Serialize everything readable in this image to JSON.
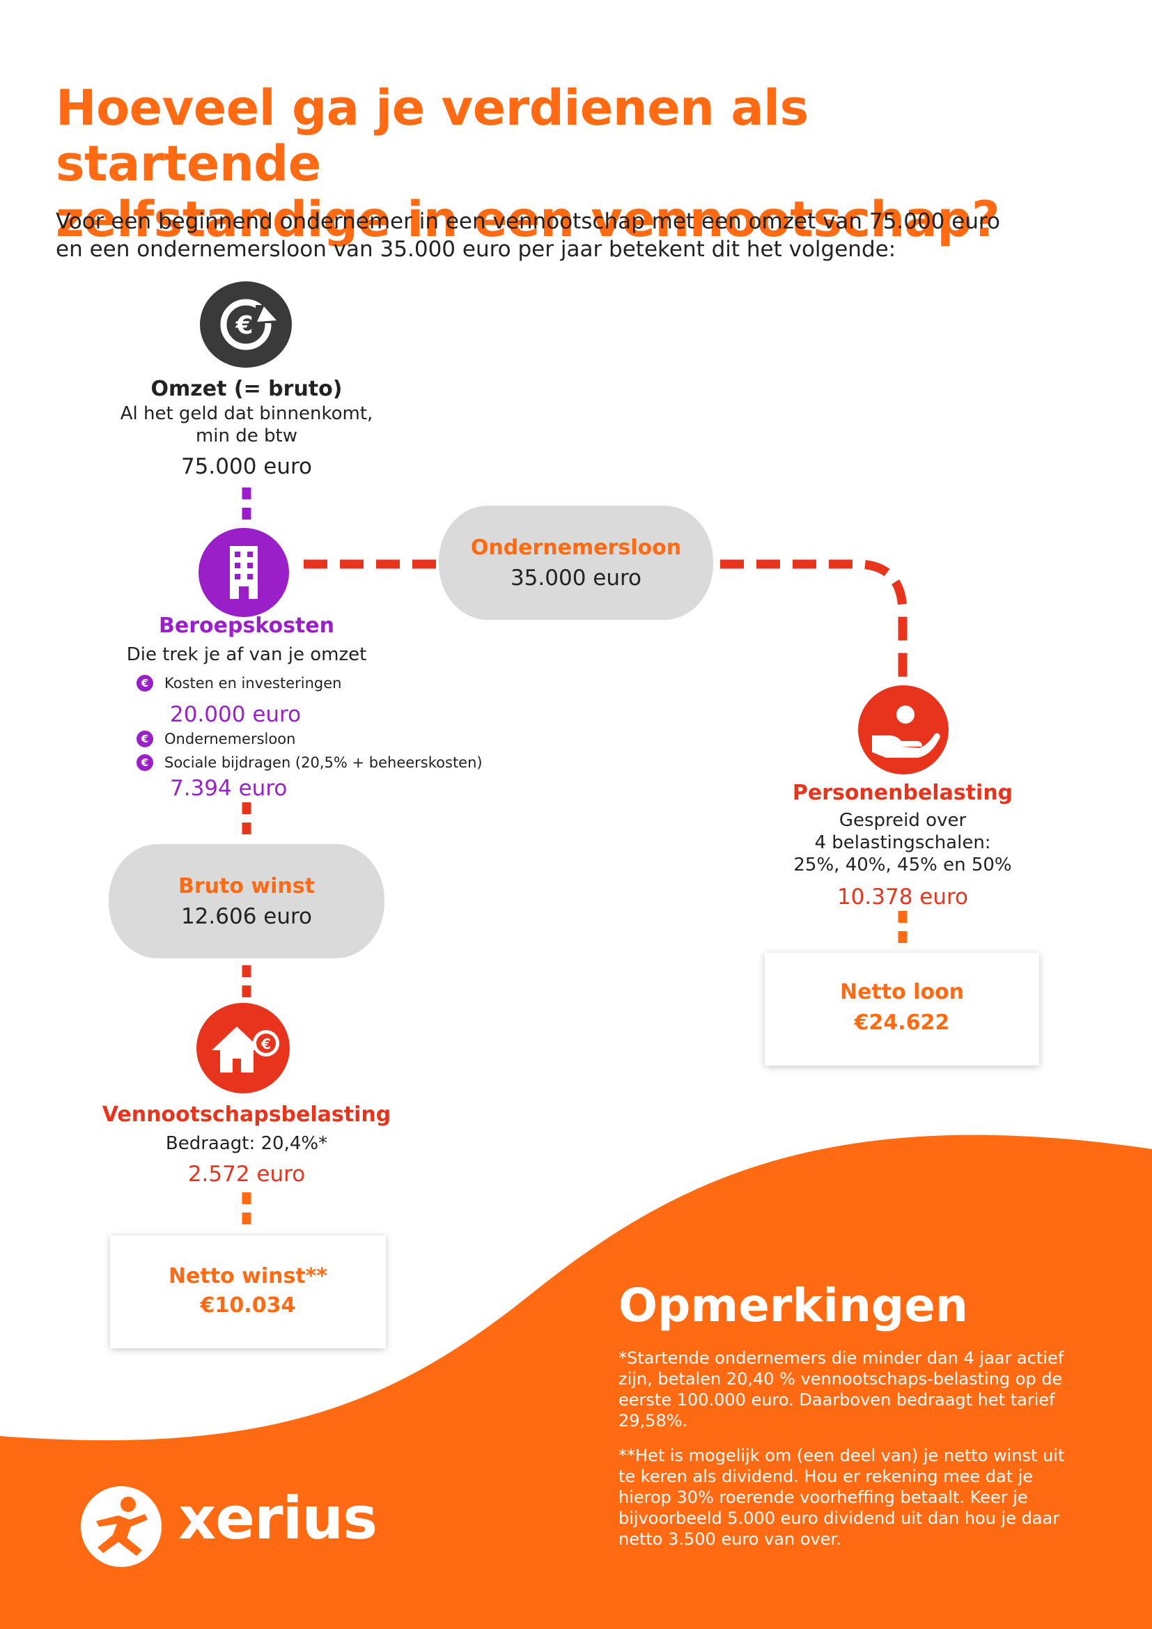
{
  "title_line1": "Hoeveel ga je verdienen als startende",
  "title_line2": "zelfstandige in een vennootschap?",
  "intro_line1": "Voor een beginnend ondernemer in een vennootschap met een omzet van 75.000 euro",
  "intro_line2": "en een ondernemersloon van 35.000 euro per jaar betekent dit het volgende:",
  "omzet": {
    "icon": "euro-refresh-icon",
    "heading": "Omzet (= bruto)",
    "desc_line1": "Al het geld dat binnenkomt,",
    "desc_line2": "min de btw",
    "value": "75.000 euro"
  },
  "beroepskosten": {
    "icon": "office-building-icon",
    "heading": "Beroepskosten",
    "desc": "Die trek je af van je omzet",
    "bullet_glyph": "€",
    "item1": "Kosten en investeringen",
    "value1": "20.000 euro",
    "item2": "Ondernemersloon",
    "item3": "Sociale bijdragen (20,5% + beheerskosten)",
    "value2": "7.394 euro"
  },
  "ondernemersloon": {
    "heading": "Ondernemersloon",
    "value": "35.000 euro"
  },
  "bruto_winst": {
    "heading": "Bruto winst",
    "value": "12.606 euro"
  },
  "vennootschapsbelasting": {
    "icon": "house-euro-icon",
    "heading": "Vennootschapsbelasting",
    "desc": "Bedraagt: 20,4%*",
    "value": "2.572 euro"
  },
  "netto_winst": {
    "heading": "Netto winst**",
    "value": "€10.034"
  },
  "personenbelasting": {
    "icon": "hand-person-icon",
    "heading": "Personenbelasting",
    "desc_line1": "Gespreid over",
    "desc_line2": "4 belastingschalen:",
    "desc_line3": "25%, 40%, 45% en 50%",
    "value": "10.378 euro"
  },
  "netto_loon": {
    "heading": "Netto loon",
    "value": "€24.622"
  },
  "remarks": {
    "title": "Opmerkingen",
    "note1": "*Startende ondernemers die minder dan 4 jaar actief zijn, betalen 20,40 % vennootschaps-belasting op de eerste 100.000 euro. Daarboven bedraagt het tarief 29,58%.",
    "note2": "**Het is mogelijk om (een deel van) je netto winst uit te keren als dividend. Hou er rekening mee dat je hierop 30% roerende voorheffing betaalt. Keer je bijvoorbeeld 5.000 euro dividend uit dan hou je daar netto 3.500 euro van over."
  },
  "logo": {
    "text": "xerius",
    "icon": "running-figure-logo"
  },
  "colors": {
    "orange": "#ff6a13",
    "purple": "#9b1fc9",
    "red": "#e8341c",
    "dark": "#3a3a3a",
    "grey": "#dadada"
  }
}
